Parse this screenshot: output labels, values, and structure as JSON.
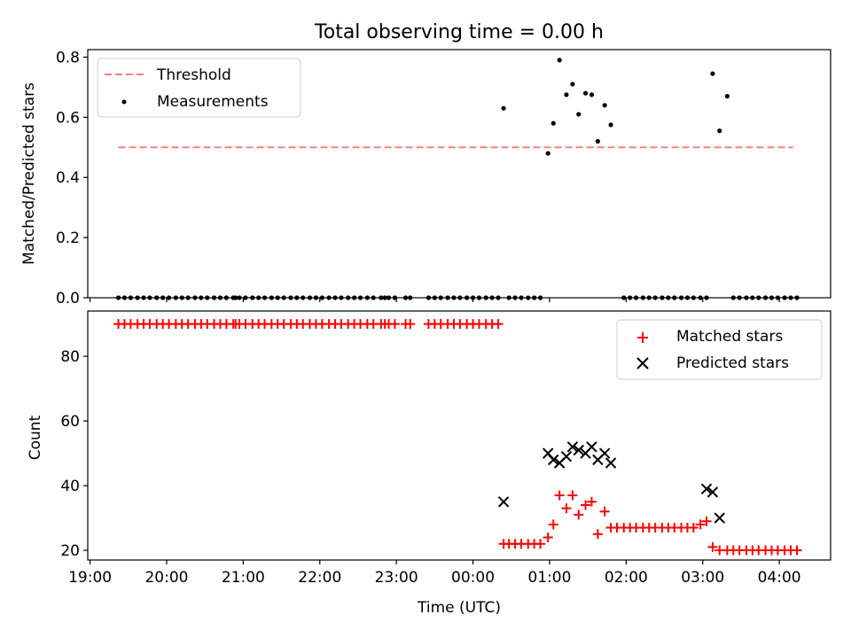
{
  "figure": {
    "title": "Total observing time = 0.00 h"
  },
  "chart_data": [
    {
      "type": "scatter",
      "ylabel": "Matched/Predicted stars",
      "xlim_hours": [
        18.97,
        28.67
      ],
      "ylim": [
        0,
        0.825
      ],
      "yticks": [
        "0.0",
        "0.2",
        "0.4",
        "0.6",
        "0.8"
      ],
      "yticks_values": [
        0,
        0.2,
        0.4,
        0.6,
        0.8
      ],
      "legend_position": "top-left",
      "threshold": {
        "name": "Threshold",
        "value": 0.5,
        "x_range": [
          19.37,
          28.18
        ],
        "color": "#ff7f7f"
      },
      "series": [
        {
          "name": "Measurements",
          "color": "#000000",
          "x": [
            19.37,
            19.45,
            19.53,
            19.62,
            19.7,
            19.78,
            19.87,
            19.95,
            20.03,
            20.12,
            20.2,
            20.28,
            20.37,
            20.45,
            20.53,
            20.62,
            20.7,
            20.78,
            20.87,
            20.9,
            20.95,
            21.03,
            21.12,
            21.2,
            21.28,
            21.37,
            21.45,
            21.53,
            21.62,
            21.7,
            21.78,
            21.87,
            21.95,
            22.03,
            22.12,
            22.2,
            22.28,
            22.37,
            22.45,
            22.53,
            22.62,
            22.7,
            22.8,
            22.85,
            22.9,
            22.98,
            23.12,
            23.18,
            23.42,
            23.5,
            23.58,
            23.67,
            23.75,
            23.83,
            23.92,
            24.0,
            24.08,
            24.17,
            24.25,
            24.33,
            24.4,
            24.47,
            24.55,
            24.63,
            24.72,
            24.8,
            24.88,
            24.98,
            25.05,
            25.13,
            25.22,
            25.3,
            25.38,
            25.47,
            25.55,
            25.63,
            25.72,
            25.8,
            25.97,
            26.05,
            26.13,
            26.22,
            26.3,
            26.38,
            26.47,
            26.55,
            26.63,
            26.72,
            26.8,
            26.88,
            26.97,
            27.05,
            27.13,
            27.22,
            27.32,
            27.4,
            27.48,
            27.57,
            27.65,
            27.73,
            27.82,
            27.9,
            27.98,
            28.07,
            28.15,
            28.23
          ],
          "y": [
            0,
            0,
            0,
            0,
            0,
            0,
            0,
            0,
            0,
            0,
            0,
            0,
            0,
            0,
            0,
            0,
            0,
            0,
            0,
            0,
            0,
            0,
            0,
            0,
            0,
            0,
            0,
            0,
            0,
            0,
            0,
            0,
            0,
            0,
            0,
            0,
            0,
            0,
            0,
            0,
            0,
            0,
            0,
            0,
            0,
            0,
            0,
            0,
            0,
            0,
            0,
            0,
            0,
            0,
            0,
            0,
            0,
            0,
            0,
            0,
            0.63,
            0,
            0,
            0,
            0,
            0,
            0,
            0.48,
            0.58,
            0.79,
            0.675,
            0.71,
            0.61,
            0.68,
            0.675,
            0.52,
            0.64,
            0.575,
            0,
            0,
            0,
            0,
            0,
            0,
            0,
            0,
            0,
            0,
            0,
            0,
            0,
            0,
            0.745,
            0.555,
            0.67,
            0,
            0,
            0,
            0,
            0,
            0,
            0,
            0,
            0,
            0,
            0
          ]
        }
      ]
    },
    {
      "type": "scatter",
      "xlabel": "Time (UTC)",
      "ylabel": "Count",
      "xlim_hours": [
        18.97,
        28.67
      ],
      "ylim": [
        17,
        94
      ],
      "yticks": [
        "20",
        "40",
        "60",
        "80"
      ],
      "yticks_values": [
        20,
        40,
        60,
        80
      ],
      "xticks": [
        "19:00",
        "20:00",
        "21:00",
        "22:00",
        "23:00",
        "00:00",
        "01:00",
        "02:00",
        "03:00",
        "04:00"
      ],
      "xticks_values": [
        19,
        20,
        21,
        22,
        23,
        24,
        25,
        26,
        27,
        28
      ],
      "legend_position": "top-right",
      "series": [
        {
          "name": "Matched stars",
          "marker": "plus",
          "color": "#ff0000",
          "x": [
            19.37,
            19.45,
            19.53,
            19.62,
            19.7,
            19.78,
            19.87,
            19.95,
            20.03,
            20.12,
            20.2,
            20.28,
            20.37,
            20.45,
            20.53,
            20.62,
            20.7,
            20.78,
            20.87,
            20.9,
            20.95,
            21.03,
            21.12,
            21.2,
            21.28,
            21.37,
            21.45,
            21.53,
            21.62,
            21.7,
            21.78,
            21.87,
            21.95,
            22.03,
            22.12,
            22.2,
            22.28,
            22.37,
            22.45,
            22.53,
            22.62,
            22.7,
            22.8,
            22.85,
            22.9,
            22.98,
            23.12,
            23.18,
            23.42,
            23.5,
            23.58,
            23.67,
            23.75,
            23.83,
            23.92,
            24.0,
            24.08,
            24.17,
            24.25,
            24.33,
            24.4,
            24.47,
            24.55,
            24.63,
            24.72,
            24.8,
            24.88,
            24.98,
            25.05,
            25.13,
            25.22,
            25.3,
            25.38,
            25.47,
            25.55,
            25.63,
            25.72,
            25.8,
            25.88,
            25.97,
            26.05,
            26.13,
            26.22,
            26.3,
            26.38,
            26.47,
            26.55,
            26.63,
            26.72,
            26.8,
            26.88,
            26.97,
            27.05,
            27.13,
            27.22,
            27.32,
            27.4,
            27.48,
            27.57,
            27.65,
            27.73,
            27.82,
            27.9,
            27.98,
            28.07,
            28.15,
            28.23
          ],
          "y": [
            90,
            90,
            90,
            90,
            90,
            90,
            90,
            90,
            90,
            90,
            90,
            90,
            90,
            90,
            90,
            90,
            90,
            90,
            90,
            90,
            90,
            90,
            90,
            90,
            90,
            90,
            90,
            90,
            90,
            90,
            90,
            90,
            90,
            90,
            90,
            90,
            90,
            90,
            90,
            90,
            90,
            90,
            90,
            90,
            90,
            90,
            90,
            90,
            90,
            90,
            90,
            90,
            90,
            90,
            90,
            90,
            90,
            90,
            90,
            90,
            22,
            22,
            22,
            22,
            22,
            22,
            22,
            24,
            28,
            37,
            33,
            37,
            31,
            34,
            35,
            25,
            32,
            27,
            27,
            27,
            27,
            27,
            27,
            27,
            27,
            27,
            27,
            27,
            27,
            27,
            27,
            28,
            29,
            21,
            20,
            20,
            20,
            20,
            20,
            20,
            20,
            20,
            20,
            20,
            20,
            20,
            20
          ]
        },
        {
          "name": "Predicted stars",
          "marker": "x",
          "color": "#000000",
          "x": [
            24.4,
            24.98,
            25.05,
            25.13,
            25.22,
            25.3,
            25.38,
            25.47,
            25.55,
            25.63,
            25.72,
            25.8,
            27.05,
            27.13,
            27.22
          ],
          "y": [
            35,
            50,
            48,
            47,
            49,
            52,
            51,
            50,
            52,
            48,
            50,
            47,
            39,
            38,
            30
          ]
        }
      ]
    }
  ]
}
